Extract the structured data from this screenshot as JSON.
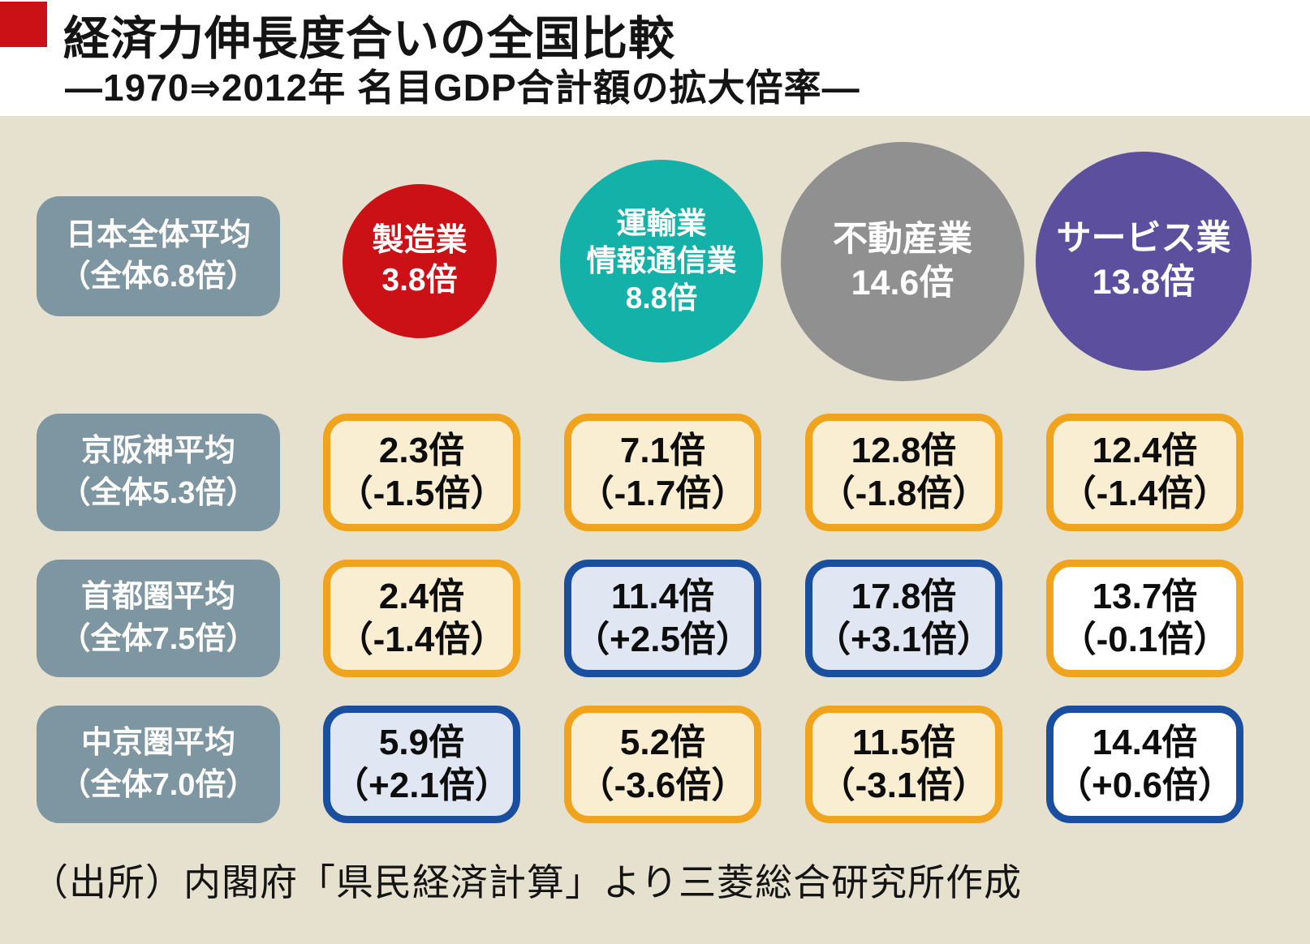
{
  "header": {
    "title": "経済力伸長度合いの全国比較",
    "subtitle": "―1970⇒2012年 名目GDP合計額の拡大倍率―"
  },
  "national": {
    "line1": "日本全体平均",
    "line2": "（全体6.8倍）"
  },
  "industries": [
    {
      "name": "製造業",
      "line1": "製造業",
      "line2": "",
      "value_label": "3.8倍",
      "color": "#cb1016"
    },
    {
      "name": "運輸業・情報通信業",
      "line1": "運輸業",
      "line2": "情報通信業",
      "value_label": "8.8倍",
      "color": "#14b1a8"
    },
    {
      "name": "不動産業",
      "line1": "不動産業",
      "line2": "",
      "value_label": "14.6倍",
      "color": "#909090"
    },
    {
      "name": "サービス業",
      "line1": "サービス業",
      "line2": "",
      "value_label": "13.8倍",
      "color": "#5b4f9e"
    }
  ],
  "regions": [
    {
      "line1": "京阪神平均",
      "line2": "（全体5.3倍）",
      "cells": [
        {
          "value": "2.3倍",
          "diff": "（-1.5倍）",
          "trend": "negative"
        },
        {
          "value": "7.1倍",
          "diff": "（-1.7倍）",
          "trend": "negative"
        },
        {
          "value": "12.8倍",
          "diff": "（-1.8倍）",
          "trend": "negative"
        },
        {
          "value": "12.4倍",
          "diff": "（-1.4倍）",
          "trend": "negative"
        }
      ]
    },
    {
      "line1": "首都圏平均",
      "line2": "（全体7.5倍）",
      "cells": [
        {
          "value": "2.4倍",
          "diff": "（-1.4倍）",
          "trend": "negative"
        },
        {
          "value": "11.4倍",
          "diff": "（+2.5倍）",
          "trend": "positive"
        },
        {
          "value": "17.8倍",
          "diff": "（+3.1倍）",
          "trend": "positive"
        },
        {
          "value": "13.7倍",
          "diff": "（-0.1倍）",
          "trend": "slightly-negative"
        }
      ]
    },
    {
      "line1": "中京圏平均",
      "line2": "（全体7.0倍）",
      "cells": [
        {
          "value": "5.9倍",
          "diff": "（+2.1倍）",
          "trend": "positive"
        },
        {
          "value": "5.2倍",
          "diff": "（-3.6倍）",
          "trend": "negative"
        },
        {
          "value": "11.5倍",
          "diff": "（-3.1倍）",
          "trend": "negative"
        },
        {
          "value": "14.4倍",
          "diff": "（+0.6倍）",
          "trend": "slightly-positive"
        }
      ]
    }
  ],
  "source": "（出所）内閣府「県民経済計算」より三菱総合研究所作成",
  "colors": {
    "background": "#e6e1cf",
    "title_band": "#ffffff",
    "accent_red": "#cb1016",
    "region_pill": "#7e95a2",
    "circle_manufacturing": "#cb1016",
    "circle_transport_ict": "#14b1a8",
    "circle_real_estate": "#909090",
    "circle_services": "#5b4f9e",
    "cell_negative_border": "#f0a41e",
    "cell_negative_fill": "#faeed2",
    "cell_positive_border": "#1a4f9f",
    "cell_positive_fill": "#e0e7f2",
    "cell_white_fill": "#ffffff"
  },
  "chart_data": {
    "type": "table",
    "title": "経済力伸長度合いの全国比較",
    "subtitle": "―1970⇒2012年 名目GDP合計額の拡大倍率―",
    "unit": "倍 (multiple of nominal GDP, 1970→2012)",
    "columns": [
      "製造業",
      "運輸業・情報通信業",
      "不動産業",
      "サービス業"
    ],
    "national_average": {
      "label": "日本全体平均",
      "overall": 6.8,
      "values": [
        3.8,
        8.8,
        14.6,
        13.8
      ]
    },
    "regions": [
      {
        "label": "京阪神平均",
        "overall": 5.3,
        "values": [
          2.3,
          7.1,
          12.8,
          12.4
        ],
        "diffs_vs_national": [
          -1.5,
          -1.7,
          -1.8,
          -1.4
        ]
      },
      {
        "label": "首都圏平均",
        "overall": 7.5,
        "values": [
          2.4,
          11.4,
          17.8,
          13.7
        ],
        "diffs_vs_national": [
          -1.4,
          2.5,
          3.1,
          -0.1
        ]
      },
      {
        "label": "中京圏平均",
        "overall": 7.0,
        "values": [
          5.9,
          5.2,
          11.5,
          14.4
        ],
        "diffs_vs_national": [
          2.1,
          -3.6,
          -3.1,
          0.6
        ]
      }
    ],
    "legend_note": "orange-bordered cells = below national average, blue-bordered cells = above national average; circle area scaled to national multiple",
    "source": "（出所）内閣府「県民経済計算」より三菱総合研究所作成"
  }
}
